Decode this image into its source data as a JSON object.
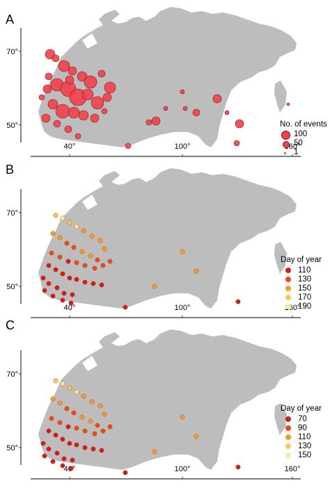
{
  "panels": [
    {
      "label": "A",
      "y_ticks": [
        "70°",
        "50°"
      ],
      "x_ticks": [
        "40°",
        "100°",
        "160°"
      ],
      "legend": {
        "title": "No. of events",
        "items": [
          {
            "label": "100",
            "size": 100
          },
          {
            "label": "50",
            "size": 50
          },
          {
            "label": "1",
            "size": 1
          }
        ]
      },
      "colors": {
        "points": "#f2404a",
        "stroke": "#7a1a1a",
        "land": "#bdbdbd"
      }
    },
    {
      "label": "B",
      "y_ticks": [
        "70°",
        "50°"
      ],
      "x_ticks": [
        "40°",
        "100°",
        "160°"
      ],
      "legend": {
        "title": "Day of year",
        "items": [
          {
            "label": "110",
            "color": "#d7191c"
          },
          {
            "label": "130",
            "color": "#ee4a16"
          },
          {
            "label": "150",
            "color": "#f79a2a"
          },
          {
            "label": "170",
            "color": "#fcc85a"
          },
          {
            "label": "190",
            "color": "#fde9a0"
          }
        ]
      },
      "colors": {
        "land": "#bdbdbd"
      }
    },
    {
      "label": "C",
      "y_ticks": [
        "70°",
        "50°"
      ],
      "x_ticks": [
        "40°",
        "100°",
        "160°"
      ],
      "legend": {
        "title": "Day of year",
        "items": [
          {
            "label": "70",
            "color": "#d7191c"
          },
          {
            "label": "90",
            "color": "#ee4a16"
          },
          {
            "label": "110",
            "color": "#f79a2a"
          },
          {
            "label": "130",
            "color": "#fcc85a"
          },
          {
            "label": "150",
            "color": "#fde9a0"
          }
        ]
      },
      "colors": {
        "land": "#bdbdbd"
      }
    }
  ]
}
